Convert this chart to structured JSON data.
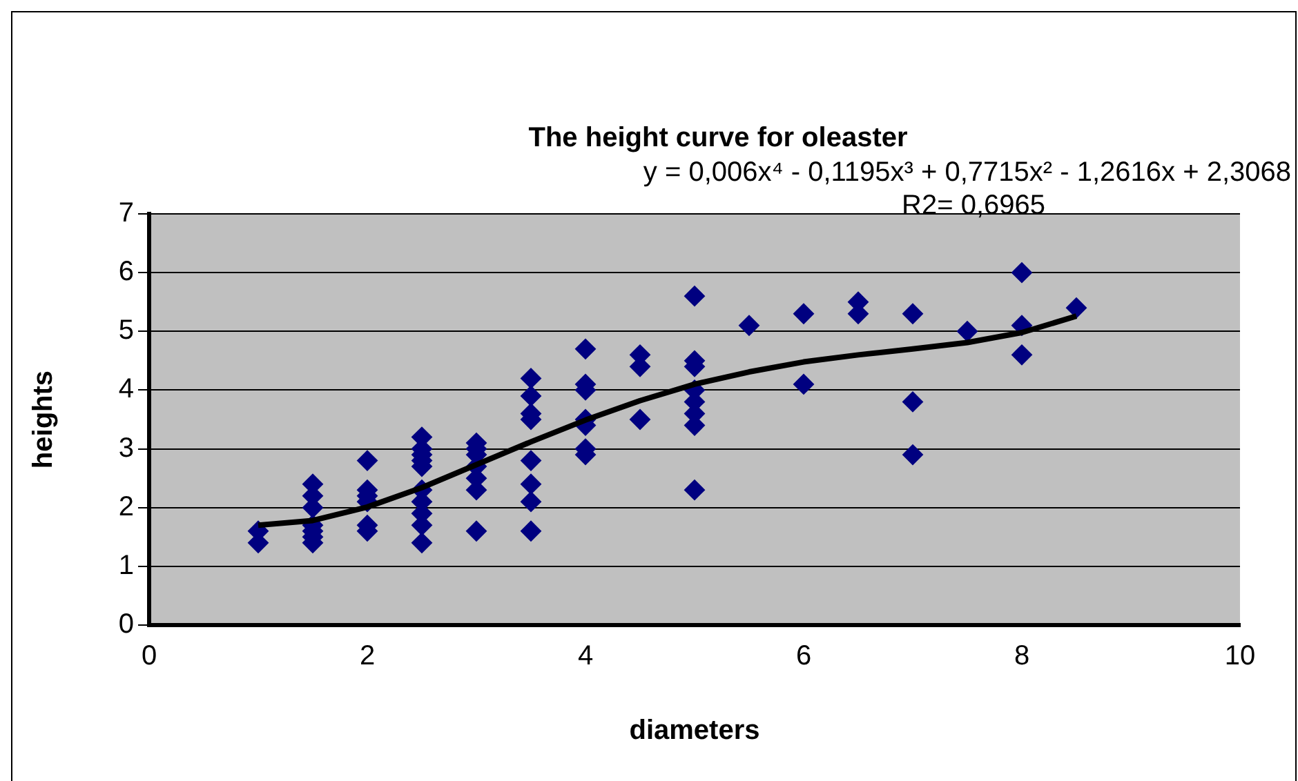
{
  "chart_data": {
    "type": "scatter",
    "title": "The height curve for oleaster",
    "xlabel": "diameters",
    "ylabel": "heights",
    "annotations": [
      "y = 0,006x⁴ - 0,1195x³ + 0,7715x² - 1,2616x + 2,3068",
      "R2= 0,6965"
    ],
    "series": [
      {
        "type": "scatter",
        "color": "#000080",
        "marker": "diamond",
        "x": [
          1,
          1,
          1.5,
          1.5,
          1.5,
          1.5,
          1.5,
          1.5,
          1.5,
          2,
          2,
          2,
          2,
          2,
          2,
          2.5,
          2.5,
          2.5,
          2.5,
          2.5,
          2.5,
          2.5,
          2.5,
          2.5,
          2.5,
          3,
          3,
          3,
          3,
          3,
          3,
          3,
          3.5,
          3.5,
          3.5,
          3.5,
          3.5,
          3.5,
          3.5,
          3.5,
          4,
          4,
          4,
          4,
          4,
          4,
          4,
          4.5,
          4.5,
          4.5,
          5,
          5,
          5,
          5,
          5,
          5,
          5,
          5,
          5.5,
          6,
          6,
          6.5,
          6.5,
          7,
          7,
          7,
          7.5,
          8,
          8,
          8,
          8.5
        ],
        "values": [
          1.4,
          1.6,
          1.4,
          1.5,
          1.6,
          1.7,
          2.0,
          2.2,
          2.4,
          1.6,
          1.7,
          2.1,
          2.2,
          2.3,
          2.8,
          1.4,
          1.7,
          1.9,
          2.1,
          2.3,
          2.7,
          2.8,
          2.9,
          3.0,
          3.2,
          1.6,
          2.3,
          2.5,
          2.7,
          2.9,
          3.0,
          3.1,
          1.6,
          2.1,
          2.4,
          2.8,
          3.5,
          3.6,
          3.9,
          4.2,
          2.9,
          3.0,
          3.4,
          3.5,
          4.0,
          4.1,
          4.7,
          3.5,
          4.4,
          4.6,
          2.3,
          3.4,
          3.6,
          3.8,
          4.0,
          4.4,
          4.5,
          5.6,
          5.1,
          4.1,
          5.3,
          5.3,
          5.5,
          2.9,
          3.8,
          5.3,
          5.0,
          4.6,
          5.1,
          6.0,
          5.4
        ]
      },
      {
        "type": "line",
        "color": "#000000",
        "marker": "none",
        "line_style": "solid",
        "x": [
          1,
          1.5,
          2,
          2.5,
          3,
          3.5,
          4,
          4.5,
          5,
          5.5,
          6,
          6.5,
          7,
          7.5,
          8,
          8.5
        ],
        "values": [
          1.7,
          1.78,
          2.01,
          2.34,
          2.73,
          3.12,
          3.49,
          3.82,
          4.1,
          4.31,
          4.48,
          4.6,
          4.7,
          4.81,
          4.98,
          5.26
        ]
      }
    ],
    "xlim": [
      0,
      10
    ],
    "xticks": [
      0,
      2,
      4,
      6,
      8,
      10
    ],
    "ylim": [
      0,
      7
    ],
    "yticks": [
      0,
      1,
      2,
      3,
      4,
      5,
      6,
      7
    ],
    "grid": "y",
    "legend": false
  }
}
